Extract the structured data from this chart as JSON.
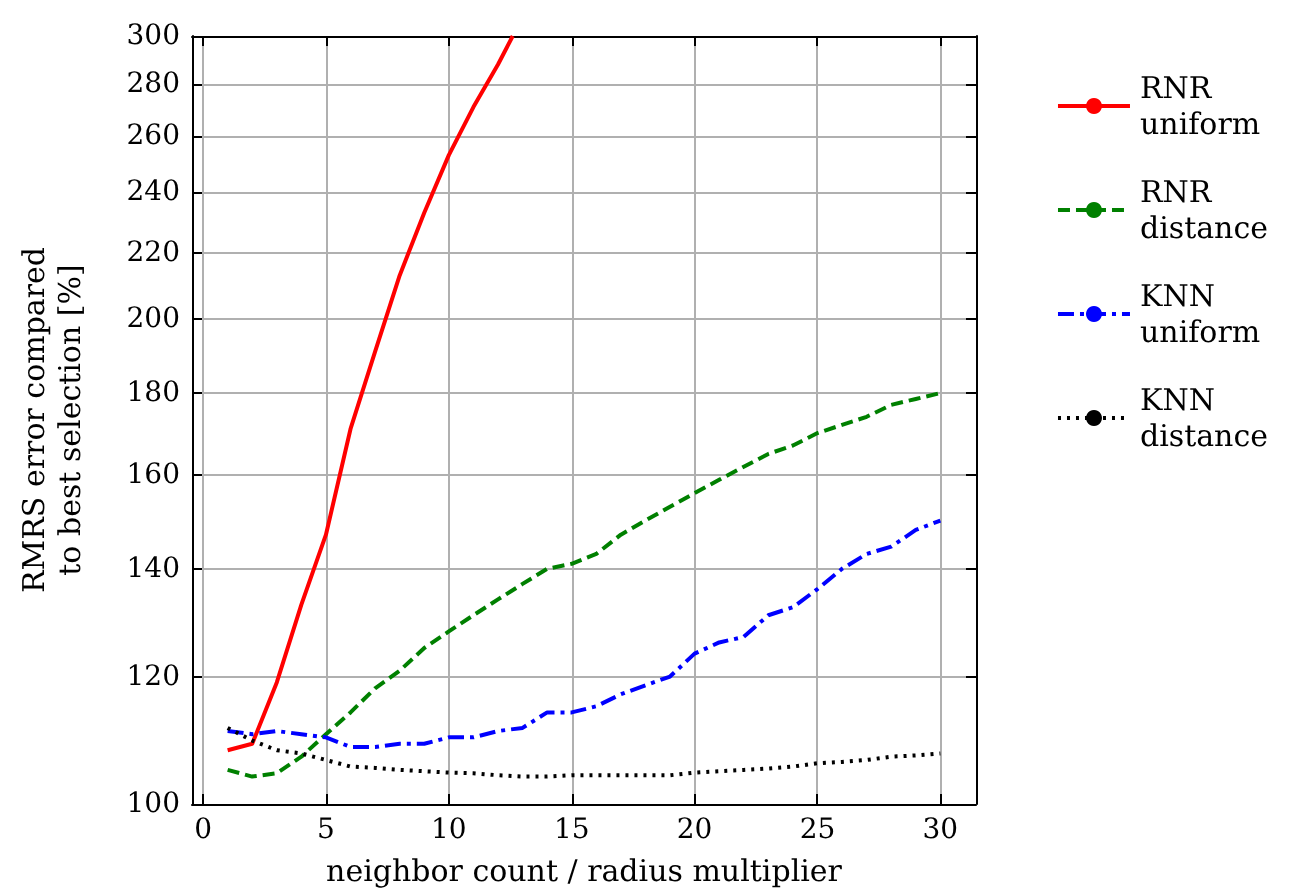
{
  "chart_data": {
    "type": "line",
    "xlabel": "neighbor count / radius multiplier",
    "ylabel": "RMRS error compared\nto best selection [%]",
    "xlim": [
      -0.45,
      31.45
    ],
    "xticks": [
      0,
      5,
      10,
      15,
      20,
      25,
      30
    ],
    "ylim": [
      100,
      300
    ],
    "yticks": [
      100,
      120,
      140,
      160,
      180,
      200,
      220,
      240,
      260,
      280,
      300
    ],
    "log": "y",
    "grid": true,
    "legend": "right",
    "marker": "none",
    "series": [
      {
        "name": "RNR\nuniform",
        "color": "#ff0000",
        "line_style": "solid",
        "x": [
          1,
          2,
          3,
          4,
          5,
          6,
          7,
          8,
          9,
          10,
          11,
          12,
          12.6
        ],
        "values": [
          108,
          109,
          119,
          133,
          147,
          171,
          191,
          213,
          233,
          253,
          271,
          288,
          300
        ]
      },
      {
        "name": "RNR\ndistance",
        "color": "#008000",
        "line_style": "dashed",
        "x": [
          1,
          2,
          3,
          4,
          5,
          6,
          7,
          8,
          9,
          10,
          11,
          12,
          13,
          14,
          15,
          16,
          17,
          18,
          19,
          20,
          21,
          22,
          23,
          24,
          25,
          26,
          27,
          28,
          29,
          30
        ],
        "values": [
          105,
          104,
          104.5,
          107,
          110.5,
          114,
          118,
          121,
          125,
          128,
          131,
          134,
          137,
          140,
          141,
          143,
          147,
          150,
          153,
          156,
          159,
          162,
          165,
          167,
          170,
          172,
          174,
          177,
          178.5,
          180
        ]
      },
      {
        "name": "KNN\nuniform",
        "color": "#0000ff",
        "line_style": "dashdot",
        "x": [
          1,
          2,
          3,
          4,
          5,
          6,
          7,
          8,
          9,
          10,
          11,
          12,
          13,
          14,
          15,
          16,
          17,
          18,
          19,
          20,
          21,
          22,
          23,
          24,
          25,
          26,
          27,
          28,
          29,
          30
        ],
        "values": [
          111,
          110.5,
          111,
          110.5,
          110,
          108.5,
          108.5,
          109,
          109,
          110,
          110,
          111,
          111.5,
          114,
          114,
          115,
          117,
          118.5,
          120,
          124,
          126,
          127,
          131,
          132.5,
          136,
          140,
          143,
          144.5,
          148,
          150
        ]
      },
      {
        "name": "KNN\ndistance",
        "color": "#000000",
        "line_style": "dotted",
        "x": [
          1,
          2,
          3,
          4,
          5,
          6,
          7,
          8,
          9,
          10,
          11,
          12,
          13,
          14,
          15,
          16,
          17,
          18,
          19,
          20,
          21,
          22,
          23,
          24,
          25,
          26,
          27,
          28,
          29,
          30
        ],
        "values": [
          111.5,
          109.5,
          108,
          107.5,
          106.5,
          105.5,
          105.3,
          105,
          104.8,
          104.6,
          104.5,
          104.2,
          104,
          104,
          104.2,
          104.2,
          104.2,
          104.2,
          104.2,
          104.6,
          104.8,
          105,
          105.2,
          105.5,
          106,
          106.2,
          106.5,
          107,
          107.2,
          107.5
        ]
      }
    ]
  }
}
